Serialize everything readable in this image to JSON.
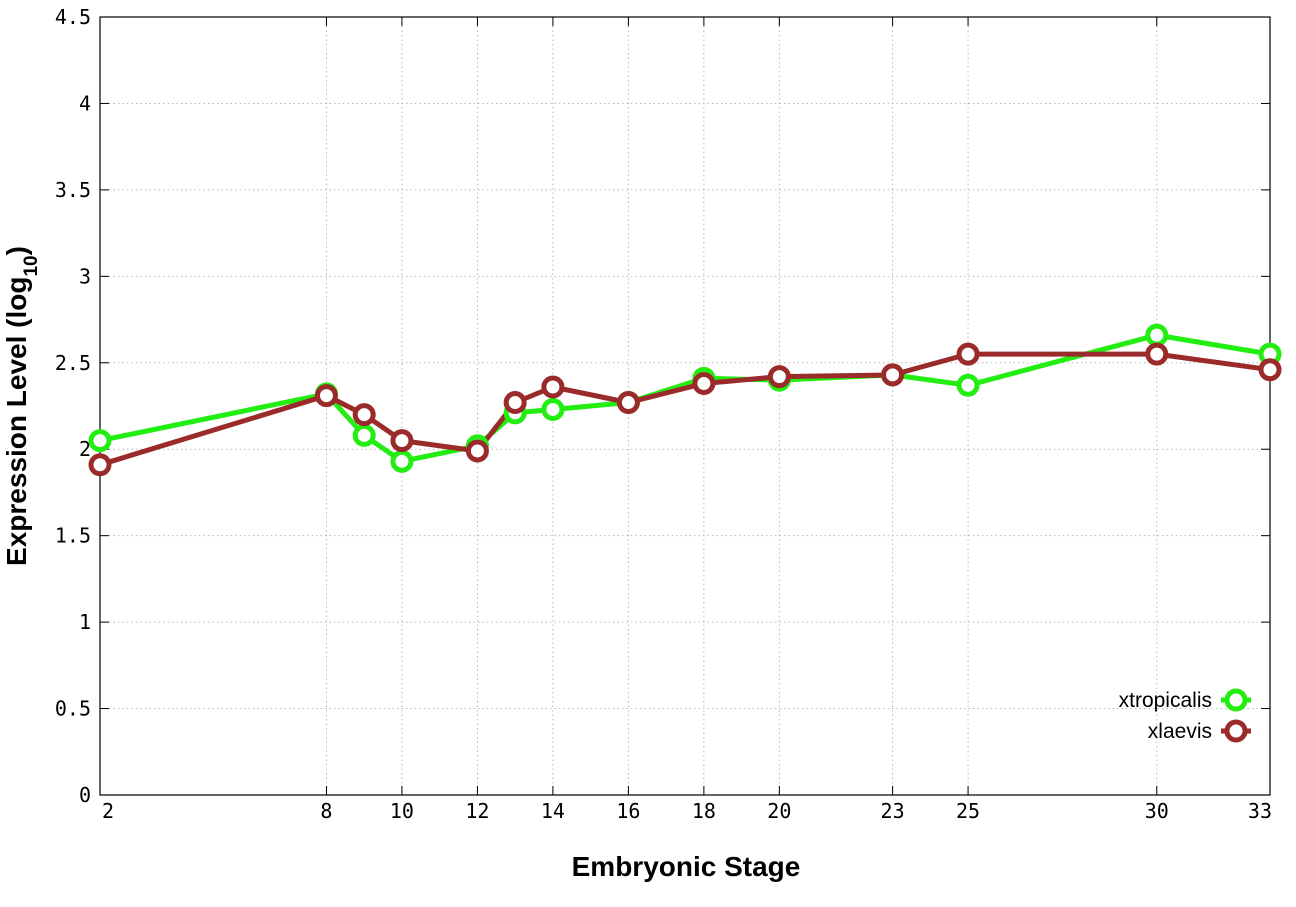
{
  "chart_data": {
    "type": "line",
    "xlabel": "Embryonic Stage",
    "ylabel": "Expression Level (log",
    "ylabel_sub": "10",
    "ylabel_close": ")",
    "x_ticks": [
      2,
      8,
      10,
      12,
      14,
      16,
      18,
      20,
      23,
      25,
      30,
      33
    ],
    "x_tick_labels": [
      "2",
      "8",
      "10",
      "12",
      "14",
      "16",
      "18",
      "20",
      "23",
      "25",
      "30",
      "33"
    ],
    "y_ticks": [
      0,
      0.5,
      1,
      1.5,
      2,
      2.5,
      3,
      3.5,
      4,
      4.5
    ],
    "y_tick_labels": [
      "0",
      "0.5",
      "1",
      "1.5",
      "2",
      "2.5",
      "3",
      "3.5",
      "4",
      "4.5"
    ],
    "xlim": [
      2,
      33
    ],
    "ylim": [
      0,
      4.5
    ],
    "grid": true,
    "legend_position": "bottom-right",
    "series": [
      {
        "name": "xtropicalis",
        "color": "#22ee11",
        "x": [
          2,
          8,
          9,
          10,
          12,
          13,
          14,
          16,
          18,
          20,
          23,
          25,
          30,
          33
        ],
        "y": [
          2.05,
          2.32,
          2.08,
          1.93,
          2.02,
          2.21,
          2.23,
          2.27,
          2.41,
          2.4,
          2.43,
          2.37,
          2.66,
          2.55
        ]
      },
      {
        "name": "xlaevis",
        "color": "#9b2a2a",
        "x": [
          2,
          8,
          9,
          10,
          12,
          13,
          14,
          16,
          18,
          20,
          23,
          25,
          30,
          33
        ],
        "y": [
          1.91,
          2.31,
          2.2,
          2.05,
          1.99,
          2.27,
          2.36,
          2.27,
          2.38,
          2.42,
          2.43,
          2.55,
          2.55,
          2.46
        ]
      }
    ]
  }
}
